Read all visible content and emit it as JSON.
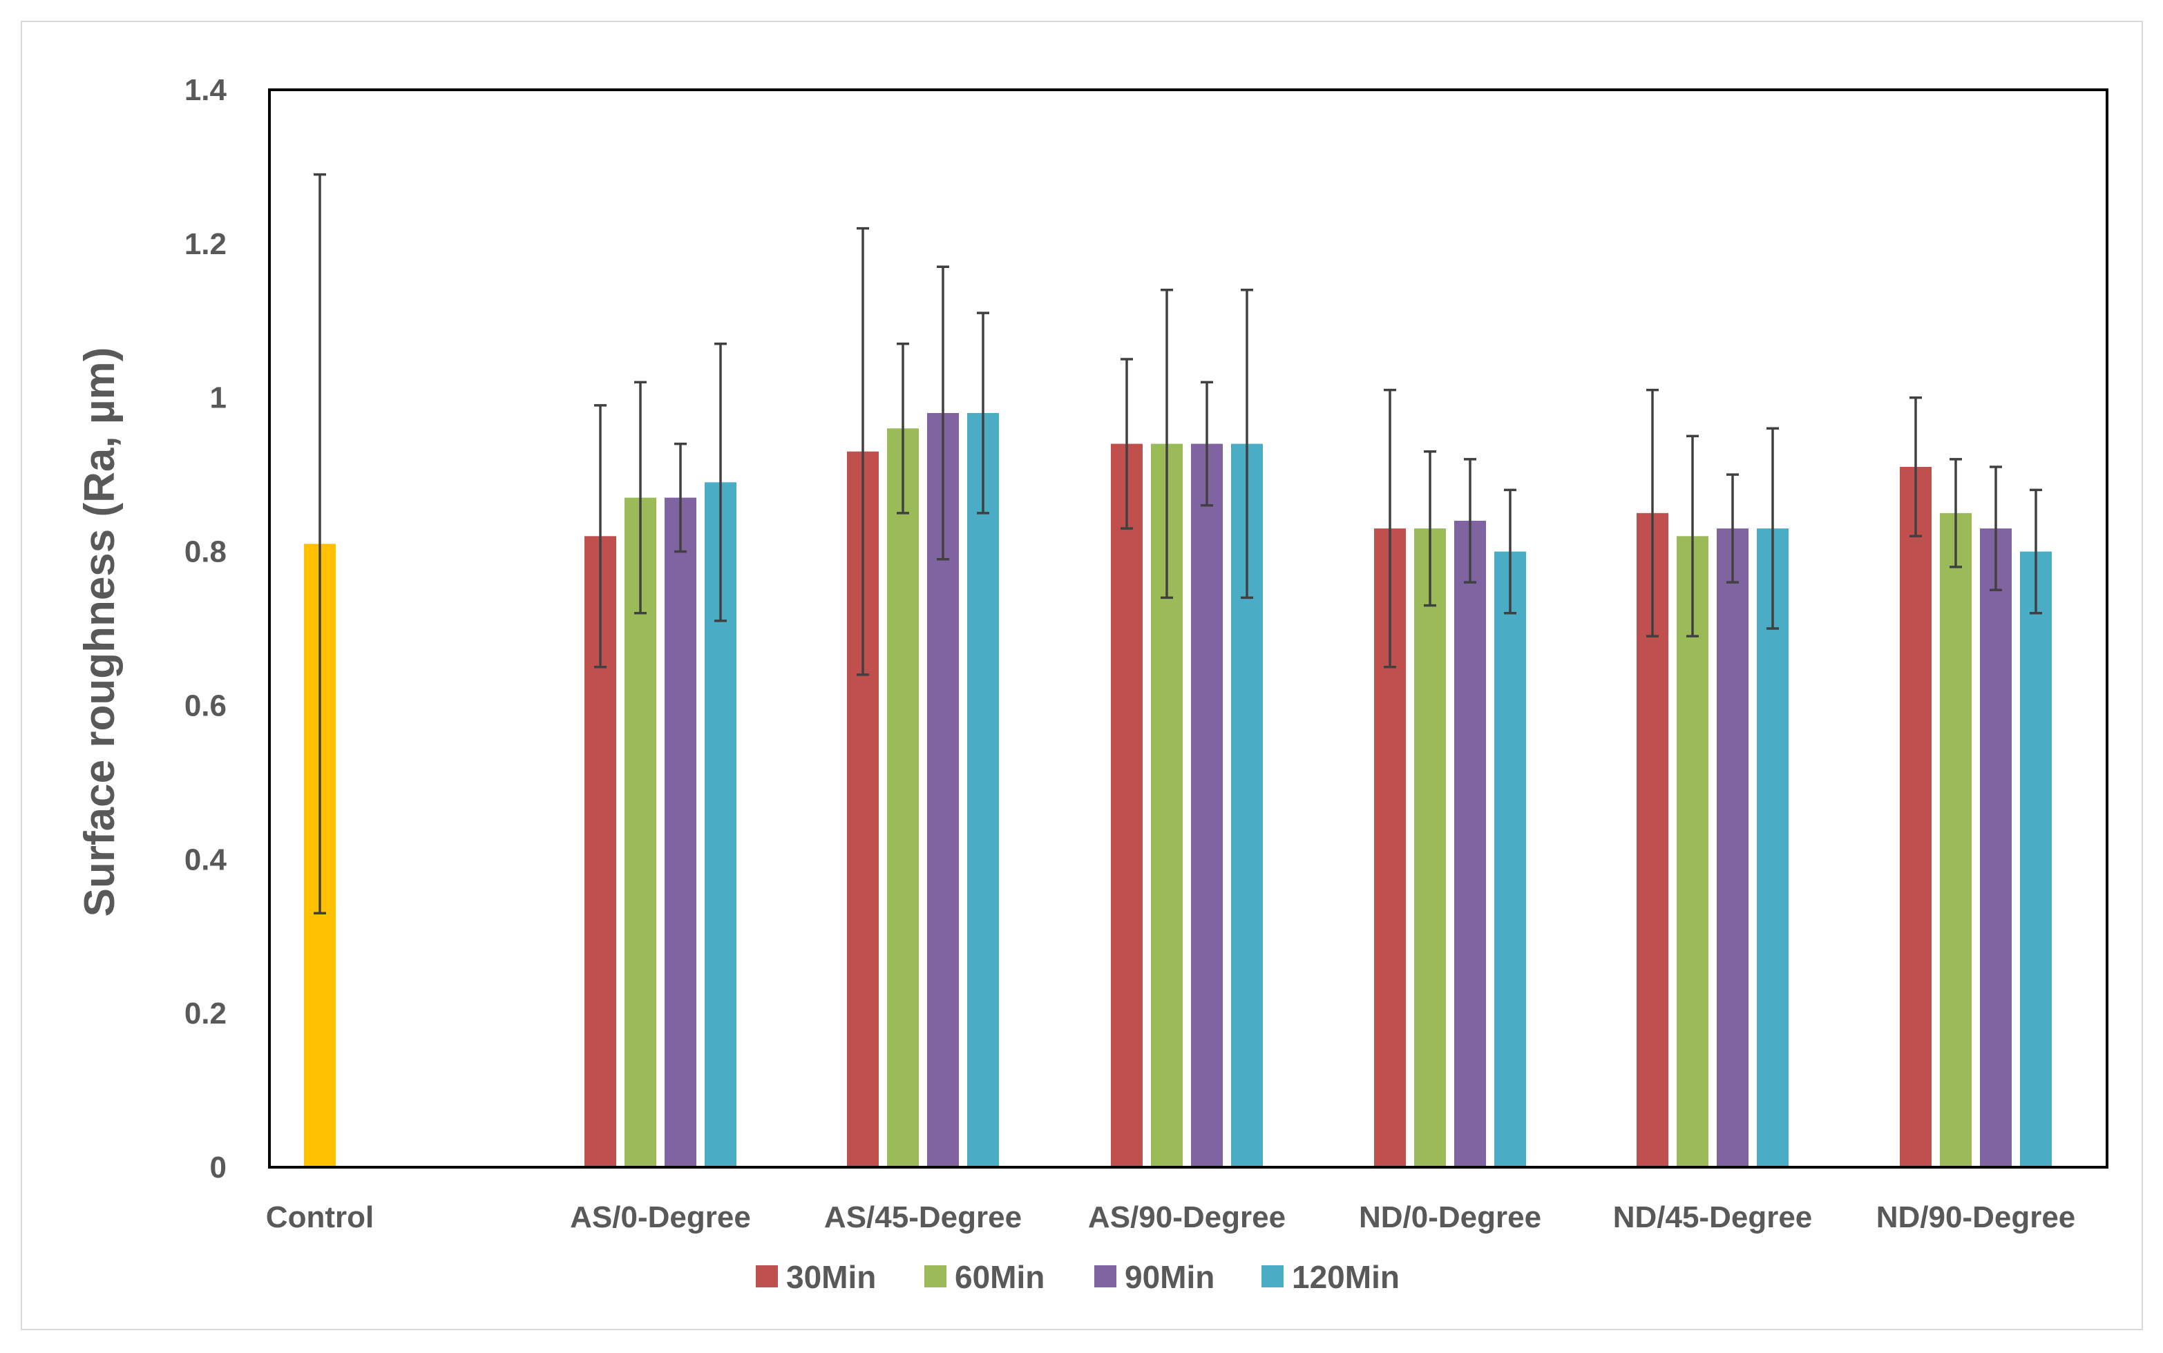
{
  "chart_data": {
    "type": "bar",
    "title": "",
    "xlabel": "",
    "ylabel": "Surface roughness (Ra, µm)",
    "ylim": [
      0,
      1.4
    ],
    "yticks": [
      0,
      0.2,
      0.4,
      0.6,
      0.8,
      1,
      1.2,
      1.4
    ],
    "ytick_labels": [
      "0",
      "0.2",
      "0.4",
      "0.6",
      "0.8",
      "1",
      "1.2",
      "1.4"
    ],
    "categories": [
      "Control",
      "AS/0-Degree",
      "AS/45-Degree",
      "AS/90-Degree",
      "ND/0-Degree",
      "ND/45-Degree",
      "ND/90-Degree"
    ],
    "control": {
      "value": 0.81,
      "err_low": 0.33,
      "err_high": 1.29,
      "color": "#FFC000"
    },
    "series": [
      {
        "name": "30Min",
        "color": "#C0504D",
        "values": [
          null,
          0.82,
          0.93,
          0.94,
          0.83,
          0.85,
          0.91
        ],
        "err_low": [
          null,
          0.65,
          0.64,
          0.83,
          0.65,
          0.69,
          0.82
        ],
        "err_high": [
          null,
          0.99,
          1.22,
          1.05,
          1.01,
          1.01,
          1.0
        ]
      },
      {
        "name": "60Min",
        "color": "#9BBB59",
        "values": [
          null,
          0.87,
          0.96,
          0.94,
          0.83,
          0.82,
          0.85
        ],
        "err_low": [
          null,
          0.72,
          0.85,
          0.74,
          0.73,
          0.69,
          0.78
        ],
        "err_high": [
          null,
          1.02,
          1.07,
          1.14,
          0.93,
          0.95,
          0.92
        ]
      },
      {
        "name": "90Min",
        "color": "#8064A2",
        "values": [
          null,
          0.87,
          0.98,
          0.94,
          0.84,
          0.83,
          0.83
        ],
        "err_low": [
          null,
          0.8,
          0.79,
          0.86,
          0.76,
          0.76,
          0.75
        ],
        "err_high": [
          null,
          0.94,
          1.17,
          1.02,
          0.92,
          0.9,
          0.91
        ]
      },
      {
        "name": "120Min",
        "color": "#4BACC6",
        "values": [
          null,
          0.89,
          0.98,
          0.94,
          0.8,
          0.83,
          0.8
        ],
        "err_low": [
          null,
          0.71,
          0.85,
          0.74,
          0.72,
          0.7,
          0.72
        ],
        "err_high": [
          null,
          1.07,
          1.11,
          1.14,
          0.88,
          0.96,
          0.88
        ]
      }
    ],
    "legend": {
      "position": "bottom",
      "labels": [
        "30Min",
        "60Min",
        "90Min",
        "120Min"
      ]
    },
    "grid": false
  }
}
